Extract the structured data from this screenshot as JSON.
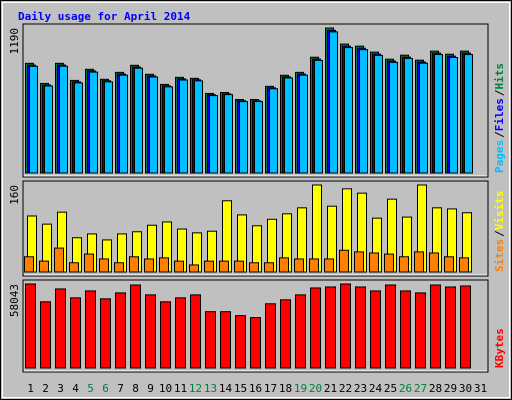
{
  "chart_data": [
    {
      "type": "bar",
      "title": "Daily usage for April 2014",
      "title_color": "#0000ff",
      "ylim": [
        0,
        1190
      ],
      "yticks": [
        1190
      ],
      "legend_separator": "/",
      "series": [
        {
          "name": "Hits",
          "color": "#008040",
          "values": [
            900,
            735,
            900,
            760,
            851,
            769,
            826,
            884,
            810,
            727,
            785,
            777,
            653,
            661,
            603,
            603,
            711,
            802,
            826,
            950,
            1190,
            1058,
            1041,
            992,
            934,
            967,
            926,
            1000,
            975,
            1000,
            null
          ]
        },
        {
          "name": "Files",
          "color": "#0000ff",
          "values": [
            885,
            722,
            886,
            748,
            838,
            757,
            812,
            870,
            797,
            715,
            772,
            765,
            642,
            650,
            593,
            593,
            699,
            789,
            812,
            935,
            1171,
            1041,
            1024,
            976,
            919,
            951,
            911,
            984,
            959,
            984,
            null
          ]
        },
        {
          "name": "Pages",
          "color": "#00c0ff",
          "values": [
            875,
            714,
            876,
            739,
            828,
            748,
            803,
            860,
            788,
            707,
            763,
            756,
            635,
            643,
            586,
            586,
            691,
            780,
            803,
            924,
            1158,
            1029,
            1012,
            965,
            908,
            940,
            901,
            972,
            948,
            972,
            null
          ]
        }
      ]
    },
    {
      "type": "bar",
      "ylim": [
        0,
        160
      ],
      "yticks": [
        160
      ],
      "legend_separator": "/",
      "series": [
        {
          "name": "Visits",
          "color": "#ffff00",
          "values": [
            103,
            88,
            110,
            63,
            70,
            59,
            70,
            74,
            86,
            92,
            79,
            72,
            75,
            131,
            105,
            85,
            97,
            107,
            118,
            160,
            121,
            153,
            145,
            99,
            134,
            101,
            160,
            118,
            116,
            109,
            null
          ]
        },
        {
          "name": "Sites",
          "color": "#ff8000",
          "values": [
            28,
            20,
            44,
            17,
            33,
            24,
            17,
            28,
            24,
            26,
            20,
            13,
            20,
            20,
            20,
            17,
            17,
            26,
            24,
            24,
            24,
            40,
            37,
            35,
            33,
            28,
            37,
            35,
            28,
            26,
            null
          ]
        }
      ]
    },
    {
      "type": "bar",
      "ylim": [
        0,
        58043
      ],
      "yticks": [
        58043
      ],
      "categories": [
        "1",
        "2",
        "3",
        "4",
        "5",
        "6",
        "7",
        "8",
        "9",
        "10",
        "11",
        "12",
        "13",
        "14",
        "15",
        "16",
        "17",
        "18",
        "19",
        "20",
        "21",
        "22",
        "23",
        "24",
        "25",
        "26",
        "27",
        "28",
        "29",
        "30",
        "31"
      ],
      "category_colors": [
        "#000",
        "#000",
        "#000",
        "#000",
        "#008040",
        "#008040",
        "#000",
        "#000",
        "#000",
        "#000",
        "#000",
        "#008040",
        "#008040",
        "#000",
        "#000",
        "#000",
        "#000",
        "#000",
        "#008040",
        "#008040",
        "#000",
        "#000",
        "#000",
        "#000",
        "#000",
        "#008040",
        "#008040",
        "#000",
        "#000",
        "#000",
        "#000"
      ],
      "series": [
        {
          "name": "KBytes",
          "color": "#ff0000",
          "values": [
            58043,
            45754,
            54630,
            48485,
            53264,
            47800,
            51898,
            57360,
            50532,
            45754,
            48485,
            50532,
            38925,
            38925,
            36194,
            34829,
            44389,
            47120,
            50532,
            55313,
            55995,
            58043,
            55995,
            53264,
            57360,
            53264,
            51898,
            57360,
            55995,
            56677,
            null
          ]
        }
      ]
    }
  ]
}
